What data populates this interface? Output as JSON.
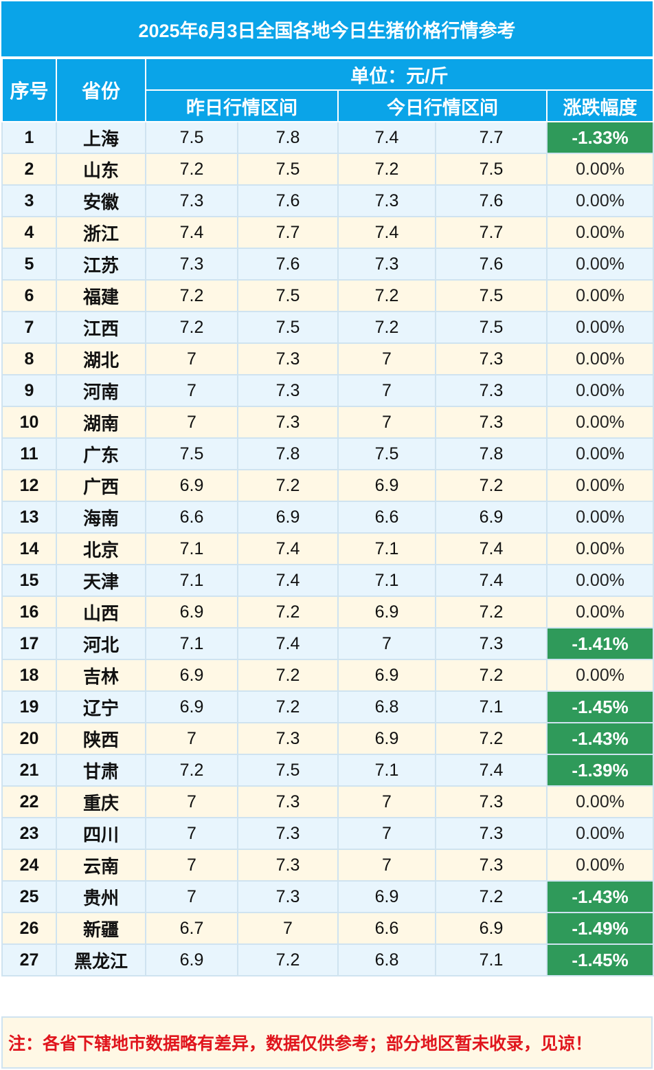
{
  "title": "2025年6月3日全国各地今日生猪价格行情参考",
  "header": {
    "index": "序号",
    "province": "省份",
    "unit": "单位：元/斤",
    "yesterday": "昨日行情区间",
    "today": "今日行情区间",
    "change": "涨跌幅度"
  },
  "rows": [
    {
      "no": "1",
      "province": "上海",
      "y_low": "7.5",
      "y_high": "7.8",
      "t_low": "7.4",
      "t_high": "7.7",
      "change": "-1.33%"
    },
    {
      "no": "2",
      "province": "山东",
      "y_low": "7.2",
      "y_high": "7.5",
      "t_low": "7.2",
      "t_high": "7.5",
      "change": "0.00%"
    },
    {
      "no": "3",
      "province": "安徽",
      "y_low": "7.3",
      "y_high": "7.6",
      "t_low": "7.3",
      "t_high": "7.6",
      "change": "0.00%"
    },
    {
      "no": "4",
      "province": "浙江",
      "y_low": "7.4",
      "y_high": "7.7",
      "t_low": "7.4",
      "t_high": "7.7",
      "change": "0.00%"
    },
    {
      "no": "5",
      "province": "江苏",
      "y_low": "7.3",
      "y_high": "7.6",
      "t_low": "7.3",
      "t_high": "7.6",
      "change": "0.00%"
    },
    {
      "no": "6",
      "province": "福建",
      "y_low": "7.2",
      "y_high": "7.5",
      "t_low": "7.2",
      "t_high": "7.5",
      "change": "0.00%"
    },
    {
      "no": "7",
      "province": "江西",
      "y_low": "7.2",
      "y_high": "7.5",
      "t_low": "7.2",
      "t_high": "7.5",
      "change": "0.00%"
    },
    {
      "no": "8",
      "province": "湖北",
      "y_low": "7",
      "y_high": "7.3",
      "t_low": "7",
      "t_high": "7.3",
      "change": "0.00%"
    },
    {
      "no": "9",
      "province": "河南",
      "y_low": "7",
      "y_high": "7.3",
      "t_low": "7",
      "t_high": "7.3",
      "change": "0.00%"
    },
    {
      "no": "10",
      "province": "湖南",
      "y_low": "7",
      "y_high": "7.3",
      "t_low": "7",
      "t_high": "7.3",
      "change": "0.00%"
    },
    {
      "no": "11",
      "province": "广东",
      "y_low": "7.5",
      "y_high": "7.8",
      "t_low": "7.5",
      "t_high": "7.8",
      "change": "0.00%"
    },
    {
      "no": "12",
      "province": "广西",
      "y_low": "6.9",
      "y_high": "7.2",
      "t_low": "6.9",
      "t_high": "7.2",
      "change": "0.00%"
    },
    {
      "no": "13",
      "province": "海南",
      "y_low": "6.6",
      "y_high": "6.9",
      "t_low": "6.6",
      "t_high": "6.9",
      "change": "0.00%"
    },
    {
      "no": "14",
      "province": "北京",
      "y_low": "7.1",
      "y_high": "7.4",
      "t_low": "7.1",
      "t_high": "7.4",
      "change": "0.00%"
    },
    {
      "no": "15",
      "province": "天津",
      "y_low": "7.1",
      "y_high": "7.4",
      "t_low": "7.1",
      "t_high": "7.4",
      "change": "0.00%"
    },
    {
      "no": "16",
      "province": "山西",
      "y_low": "6.9",
      "y_high": "7.2",
      "t_low": "6.9",
      "t_high": "7.2",
      "change": "0.00%"
    },
    {
      "no": "17",
      "province": "河北",
      "y_low": "7.1",
      "y_high": "7.4",
      "t_low": "7",
      "t_high": "7.3",
      "change": "-1.41%"
    },
    {
      "no": "18",
      "province": "吉林",
      "y_low": "6.9",
      "y_high": "7.2",
      "t_low": "6.9",
      "t_high": "7.2",
      "change": "0.00%"
    },
    {
      "no": "19",
      "province": "辽宁",
      "y_low": "6.9",
      "y_high": "7.2",
      "t_low": "6.8",
      "t_high": "7.1",
      "change": "-1.45%"
    },
    {
      "no": "20",
      "province": "陕西",
      "y_low": "7",
      "y_high": "7.3",
      "t_low": "6.9",
      "t_high": "7.2",
      "change": "-1.43%"
    },
    {
      "no": "21",
      "province": "甘肃",
      "y_low": "7.2",
      "y_high": "7.5",
      "t_low": "7.1",
      "t_high": "7.4",
      "change": "-1.39%"
    },
    {
      "no": "22",
      "province": "重庆",
      "y_low": "7",
      "y_high": "7.3",
      "t_low": "7",
      "t_high": "7.3",
      "change": "0.00%"
    },
    {
      "no": "23",
      "province": "四川",
      "y_low": "7",
      "y_high": "7.3",
      "t_low": "7",
      "t_high": "7.3",
      "change": "0.00%"
    },
    {
      "no": "24",
      "province": "云南",
      "y_low": "7",
      "y_high": "7.3",
      "t_low": "7",
      "t_high": "7.3",
      "change": "0.00%"
    },
    {
      "no": "25",
      "province": "贵州",
      "y_low": "7",
      "y_high": "7.3",
      "t_low": "6.9",
      "t_high": "7.2",
      "change": "-1.43%"
    },
    {
      "no": "26",
      "province": "新疆",
      "y_low": "6.7",
      "y_high": "7",
      "t_low": "6.6",
      "t_high": "6.9",
      "change": "-1.49%"
    },
    {
      "no": "27",
      "province": "黑龙江",
      "y_low": "6.9",
      "y_high": "7.2",
      "t_low": "6.8",
      "t_high": "7.1",
      "change": "-1.45%"
    }
  ],
  "note": "注：各省下辖地市数据略有差异，数据仅供参考；部分地区暂未收录，见谅！",
  "colors": {
    "header_blue": "#0aa4e8",
    "row_blue": "#e8f5fd",
    "row_cream": "#fff8e5",
    "decline_green": "#2f9a5a",
    "note_red": "#e0151d"
  }
}
